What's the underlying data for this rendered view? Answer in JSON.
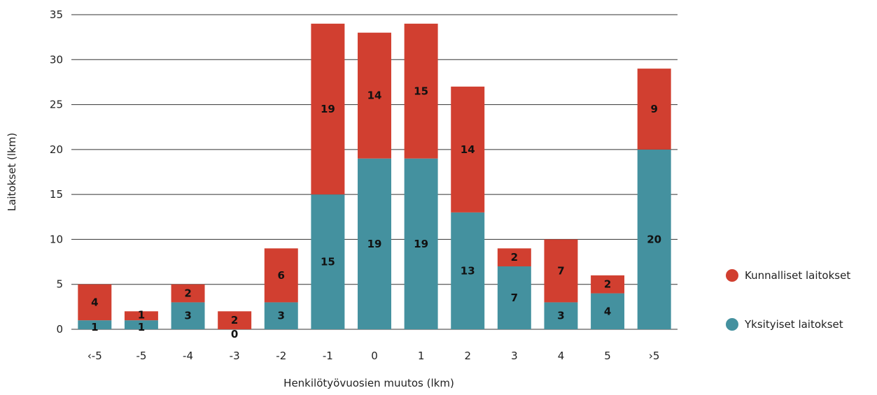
{
  "chart_data": {
    "type": "bar",
    "stacked": true,
    "categories": [
      "‹-5",
      "-5",
      "-4",
      "-3",
      "-2",
      "-1",
      "0",
      "1",
      "2",
      "3",
      "4",
      "5",
      "›5"
    ],
    "series": [
      {
        "name": "Yksityiset laitokset",
        "color": "#44919f",
        "values": [
          1,
          1,
          3,
          0,
          3,
          15,
          19,
          19,
          13,
          7,
          3,
          4,
          20
        ]
      },
      {
        "name": "Kunnalliset laitokset",
        "color": "#d13f30",
        "values": [
          4,
          1,
          2,
          2,
          6,
          19,
          14,
          15,
          14,
          2,
          7,
          2,
          9
        ]
      }
    ],
    "xlabel": "Henkilötyövuosien muutos (lkm)",
    "ylabel": "Laitokset (lkm)",
    "ylim": [
      0,
      35
    ],
    "yticks": [
      0,
      5,
      10,
      15,
      20,
      25,
      30,
      35
    ],
    "grid": true,
    "legend_position": "right"
  }
}
